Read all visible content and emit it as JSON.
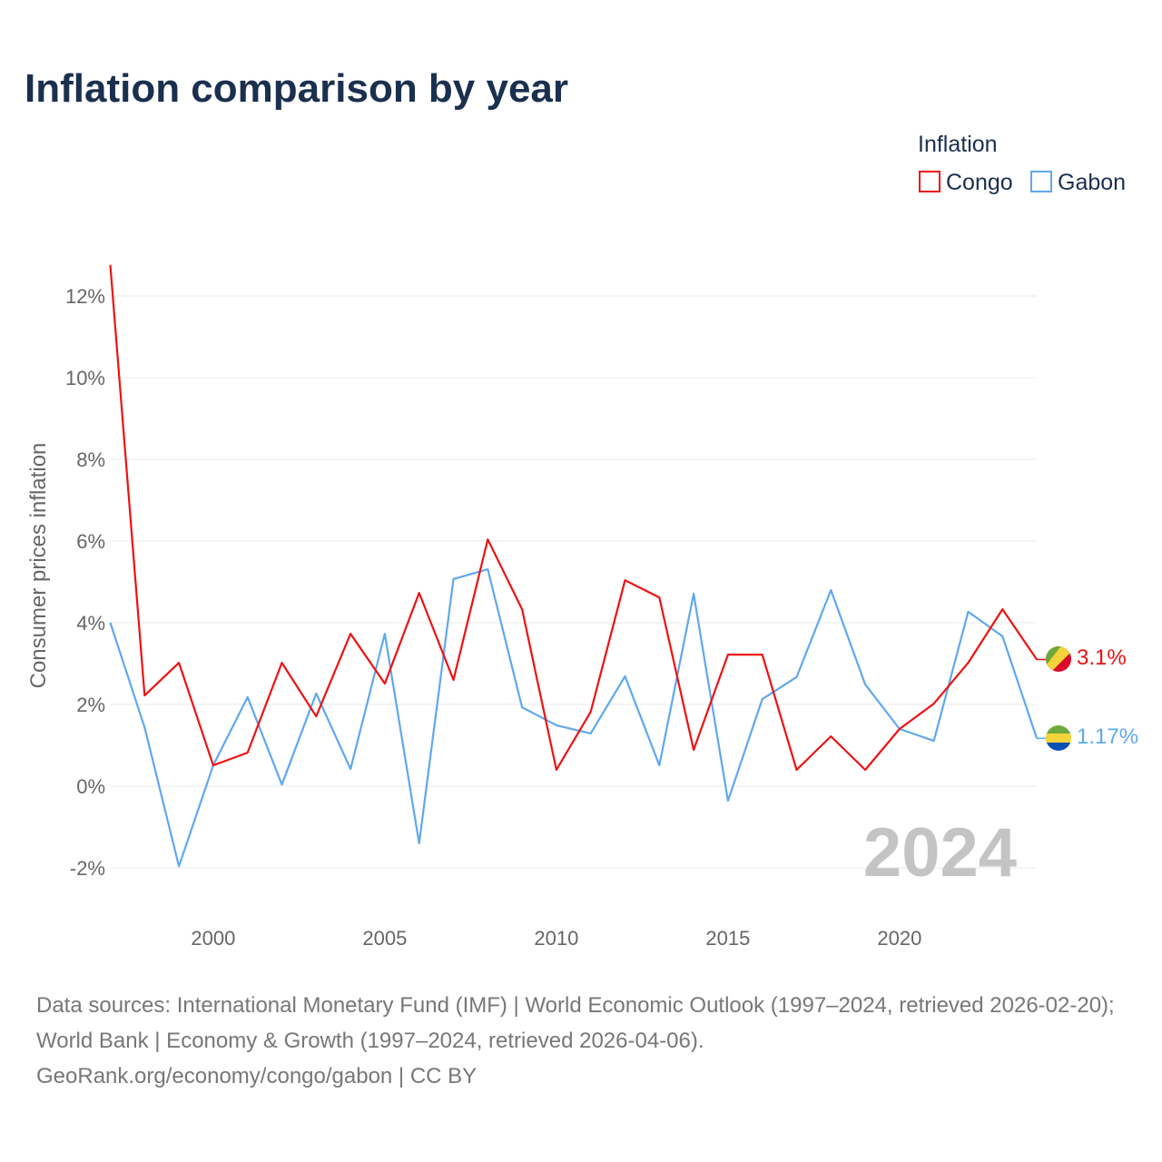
{
  "chart_data": {
    "type": "line",
    "title": "Inflation comparison by year",
    "ylabel": "Consumer prices inflation",
    "xlabel": "",
    "ylim": [
      -2.5,
      13
    ],
    "xlim": [
      1997,
      2024
    ],
    "yticks": [
      -2,
      0,
      2,
      4,
      6,
      8,
      10,
      12
    ],
    "ytick_labels": [
      "-2%",
      "0%",
      "2%",
      "4%",
      "6%",
      "8%",
      "10%",
      "12%"
    ],
    "xticks": [
      2000,
      2005,
      2010,
      2015,
      2020
    ],
    "xtick_labels": [
      "2000",
      "2005",
      "2010",
      "2015",
      "2020"
    ],
    "grid": true,
    "legend_title": "Inflation",
    "legend_position": "top-right",
    "year_label": "2024",
    "x": [
      1997,
      1998,
      1999,
      2000,
      2001,
      2002,
      2003,
      2004,
      2005,
      2006,
      2007,
      2008,
      2009,
      2010,
      2011,
      2012,
      2013,
      2014,
      2015,
      2016,
      2017,
      2018,
      2019,
      2020,
      2021,
      2022,
      2023,
      2024
    ],
    "series": [
      {
        "name": "Congo",
        "color": "#ee1111",
        "end_label": "3.1%",
        "values": [
          12.76,
          2.22,
          3.02,
          0.51,
          0.82,
          3.02,
          1.71,
          3.73,
          2.51,
          4.73,
          2.6,
          6.04,
          4.33,
          0.4,
          1.82,
          5.04,
          4.62,
          0.89,
          3.22,
          3.22,
          0.4,
          1.22,
          0.4,
          1.4,
          2.02,
          3.02,
          4.33,
          3.1
        ]
      },
      {
        "name": "Gabon",
        "color": "#5fa8ee",
        "end_label": "1.17%",
        "values": [
          4.0,
          1.44,
          -1.96,
          0.51,
          2.18,
          0.04,
          2.27,
          0.42,
          3.73,
          -1.4,
          5.07,
          5.31,
          1.93,
          1.49,
          1.29,
          2.69,
          0.51,
          4.71,
          -0.36,
          2.13,
          2.67,
          4.8,
          2.49,
          1.4,
          1.11,
          4.27,
          3.67,
          1.17
        ]
      }
    ]
  },
  "source": {
    "text": "Data sources: International Monetary Fund (IMF) | World Economic Outlook (1997–2024, retrieved 2026-02-20); World Bank | Economy & Growth (1997–2024, retrieved 2026-04-06).",
    "link": "GeoRank.org/economy/congo/gabon | CC BY"
  }
}
